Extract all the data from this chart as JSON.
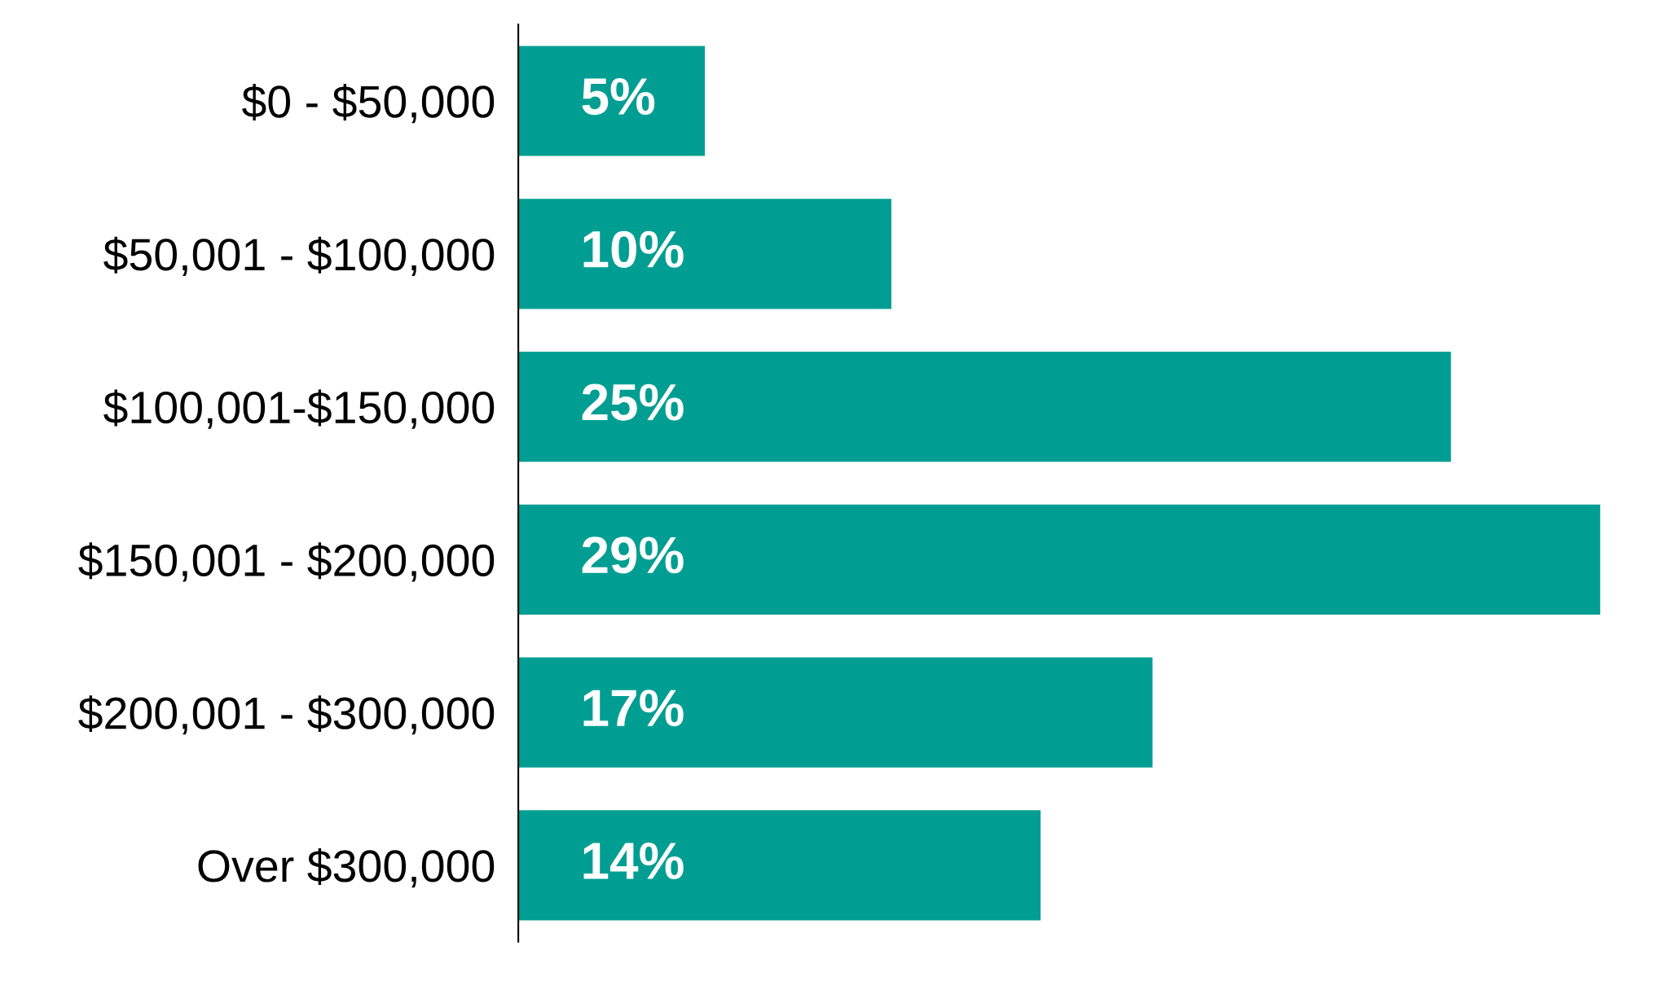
{
  "chart_data": {
    "type": "bar",
    "orientation": "horizontal",
    "categories": [
      "$0 - $50,000",
      "$50,001 - $100,000",
      "$100,001-$150,000",
      "$150,001 - $200,000",
      "$200,001 - $300,000",
      "Over $300,000"
    ],
    "values": [
      5,
      10,
      25,
      29,
      17,
      14
    ],
    "value_labels": [
      "5%",
      "10%",
      "25%",
      "29%",
      "17%",
      "14%"
    ],
    "color": "#009e92",
    "grid": false,
    "legend": false
  }
}
